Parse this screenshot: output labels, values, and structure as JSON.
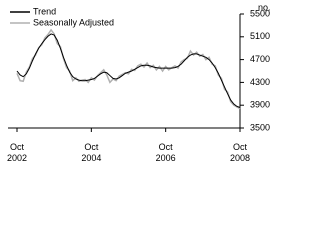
{
  "chart_data": {
    "type": "line",
    "y_label": "no.",
    "categories": [
      "Oct 2002",
      null,
      null,
      null,
      null,
      null,
      null,
      null,
      null,
      null,
      null,
      null,
      null,
      null,
      null,
      null,
      null,
      null,
      null,
      null,
      null,
      null,
      null,
      null,
      "Oct 2004",
      null,
      null,
      null,
      null,
      null,
      null,
      null,
      null,
      null,
      null,
      null,
      null,
      null,
      null,
      null,
      null,
      null,
      null,
      null,
      null,
      null,
      null,
      null,
      "Oct 2006",
      null,
      null,
      null,
      null,
      null,
      null,
      null,
      null,
      null,
      null,
      null,
      null,
      null,
      null,
      null,
      null,
      null,
      null,
      null,
      null,
      null,
      null,
      null,
      "Oct 2008"
    ],
    "series": [
      {
        "name": "Trend",
        "color": "#000000",
        "values": [
          4500,
          4430,
          4400,
          4450,
          4550,
          4680,
          4800,
          4900,
          4980,
          5050,
          5110,
          5150,
          5130,
          5040,
          4900,
          4740,
          4600,
          4480,
          4400,
          4360,
          4340,
          4330,
          4330,
          4340,
          4350,
          4370,
          4410,
          4450,
          4480,
          4470,
          4420,
          4370,
          4360,
          4380,
          4420,
          4460,
          4480,
          4500,
          4530,
          4560,
          4590,
          4600,
          4600,
          4590,
          4570,
          4560,
          4550,
          4550,
          4550,
          4550,
          4550,
          4560,
          4580,
          4620,
          4680,
          4740,
          4780,
          4800,
          4800,
          4780,
          4760,
          4740,
          4700,
          4640,
          4560,
          4460,
          4340,
          4220,
          4100,
          3990,
          3920,
          3880,
          3860
        ]
      },
      {
        "name": "Seasonally Adjusted",
        "color": "#b0b0b0",
        "values": [
          4460,
          4330,
          4320,
          4480,
          4570,
          4720,
          4780,
          4910,
          4960,
          5080,
          5140,
          5220,
          5150,
          4980,
          4930,
          4720,
          4560,
          4500,
          4330,
          4380,
          4320,
          4340,
          4350,
          4300,
          4380,
          4340,
          4420,
          4470,
          4520,
          4430,
          4300,
          4360,
          4330,
          4410,
          4440,
          4470,
          4450,
          4530,
          4510,
          4590,
          4620,
          4570,
          4640,
          4560,
          4600,
          4520,
          4580,
          4500,
          4580,
          4520,
          4560,
          4590,
          4550,
          4660,
          4700,
          4720,
          4850,
          4780,
          4830,
          4760,
          4790,
          4700,
          4740,
          4620,
          4590,
          4430,
          4370,
          4180,
          4130,
          3960,
          3900,
          3870,
          3840
        ]
      }
    ],
    "ylim": [
      3500,
      5500
    ],
    "yticks": [
      3500,
      3900,
      4300,
      4700,
      5100,
      5500
    ],
    "grid": false
  }
}
